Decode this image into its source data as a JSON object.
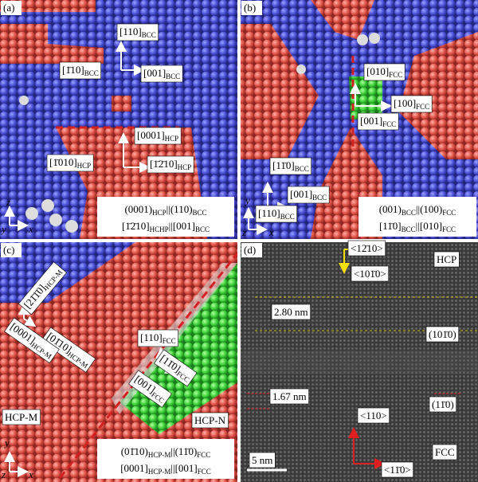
{
  "panels": [
    {
      "label": "(a)",
      "axes": [
        "z",
        "y",
        "x"
      ],
      "labels": [
        [
          "[110]",
          "BCC"
        ],
        [
          "[1̄10]",
          "BCC"
        ],
        [
          "[001]",
          "BCC"
        ],
        [
          "[0001]",
          "HCP"
        ],
        [
          "[1̄010]",
          "HCP"
        ],
        [
          "[1̄2̄10]",
          "HCP"
        ]
      ],
      "relation": [
        [
          "(0001)",
          "HCP",
          "||(110)",
          "BCC"
        ],
        [
          "[1̄2̄10]",
          "HCHP",
          "||[001]",
          "BCC"
        ]
      ]
    },
    {
      "label": "(b)",
      "axes": [
        "y",
        "z",
        "x"
      ],
      "labels": [
        [
          "[010]",
          "FCC"
        ],
        [
          "[100]",
          "FCC"
        ],
        [
          "[001]",
          "FCC"
        ],
        [
          "[11̄0]",
          "BCC"
        ],
        [
          "[001]",
          "BCC"
        ],
        [
          "[110]",
          "BCC"
        ]
      ],
      "relation": [
        [
          "(001)",
          "BCC",
          "||(100)",
          "FCC"
        ],
        [
          "[11̄0]",
          "BCC",
          "||[010]",
          "FCC"
        ]
      ]
    },
    {
      "label": "(c)",
      "axes": [
        "y",
        "z",
        "x"
      ],
      "labels": [
        [
          "[21̄1̄0]",
          "HCP-M"
        ],
        [
          "[01̄10]",
          "HCP-M"
        ],
        [
          "[0001]",
          "HCP-M"
        ],
        [
          "[110]",
          "FCC"
        ],
        [
          "[11̄0]",
          "FCC"
        ],
        [
          "[001]",
          "FCC"
        ],
        [
          "HCP-M"
        ],
        [
          "HCP-N"
        ]
      ],
      "relation": [
        [
          "(01̄10)",
          "HCP-M",
          "||(11̄0)",
          "FCC"
        ],
        [
          "[0001]",
          "HCP-M",
          "||[001]",
          "FCC"
        ]
      ]
    },
    {
      "label": "(d)",
      "labels": [
        [
          "<12̄10>"
        ],
        [
          "HCP"
        ],
        [
          "<101̄0>"
        ],
        [
          "2.80 nm"
        ],
        [
          "(101̄0)"
        ],
        [
          "1.67 nm"
        ],
        [
          "(11̄0)"
        ],
        [
          "<110>"
        ],
        [
          "FCC"
        ],
        [
          "<11̄0>"
        ],
        [
          "5 nm"
        ]
      ]
    }
  ]
}
